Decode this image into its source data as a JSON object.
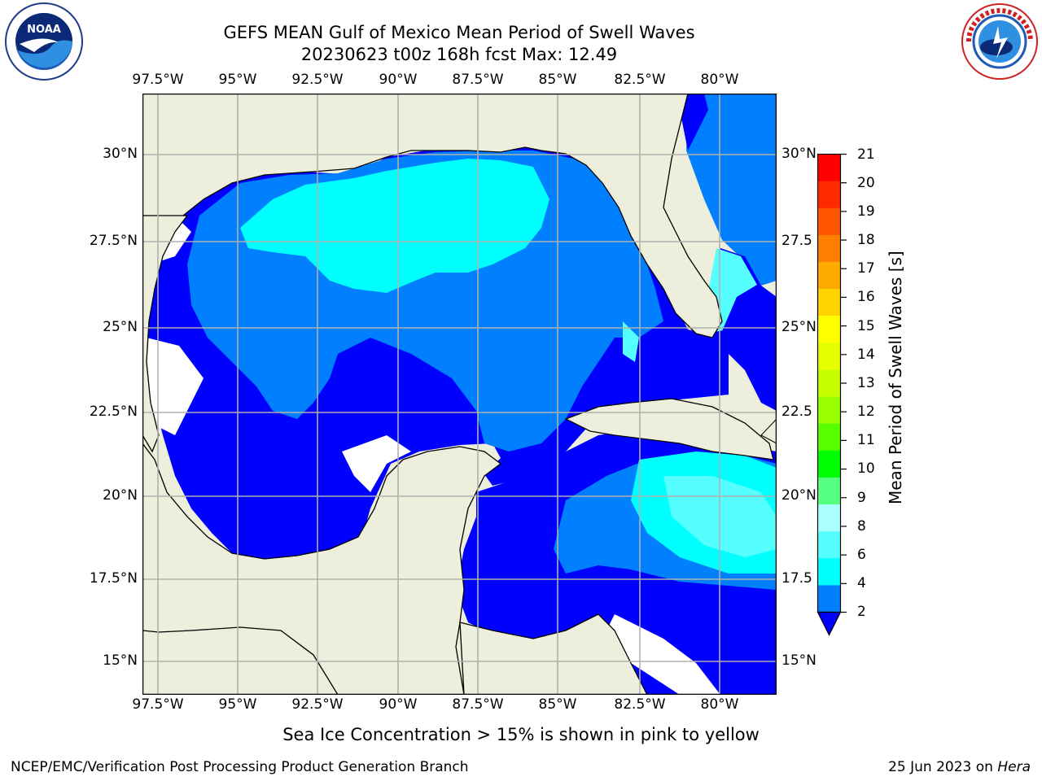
{
  "header": {
    "title_line1": "GEFS MEAN Gulf of Mexico Mean Period of Swell Waves",
    "title_line2": "20230623 t00z 168h fcst   Max: 12.49"
  },
  "logos": {
    "left": "noaa-logo",
    "right": "nws-logo",
    "left_text": "NOAA"
  },
  "map": {
    "lon_labels": [
      "97.5°W",
      "95°W",
      "92.5°W",
      "90°W",
      "87.5°W",
      "85°W",
      "82.5°W",
      "80°W"
    ],
    "lat_labels_left": [
      "30°N",
      "27.5°N",
      "25°N",
      "22.5°N",
      "20°N",
      "17.5°N",
      "15°N"
    ],
    "lat_labels_right": [
      "30°N",
      "27.5",
      "25°N",
      "22.5",
      "20°N",
      "17.5",
      "15°N"
    ],
    "extent": {
      "lon_min": -98,
      "lon_max": -78.1,
      "lat_min": 14,
      "lat_max": 31.7
    }
  },
  "colorbar": {
    "label": "Mean Period of Swell Waves [s]",
    "ticks": [
      "21",
      "20",
      "19",
      "18",
      "17",
      "16",
      "15",
      "14",
      "13",
      "12",
      "11",
      "10",
      "9",
      "8",
      "6",
      "4",
      "2"
    ],
    "colors": [
      "#ff0000",
      "#ff2a00",
      "#ff5500",
      "#ff8000",
      "#ffaa00",
      "#ffd400",
      "#ffff00",
      "#e8ff00",
      "#c8ff00",
      "#9aff00",
      "#55ff00",
      "#00ff00",
      "#55ff80",
      "#aaffff",
      "#55ffff",
      "#00ffff",
      "#0080ff",
      "#0000ff"
    ]
  },
  "note": "Sea Ice Concentration > 15% is shown in pink to yellow",
  "footer": {
    "left": "NCEP/EMC/Verification Post Processing Product Generation Branch",
    "right_date": "25 Jun 2023 on ",
    "right_host": "Hera"
  }
}
